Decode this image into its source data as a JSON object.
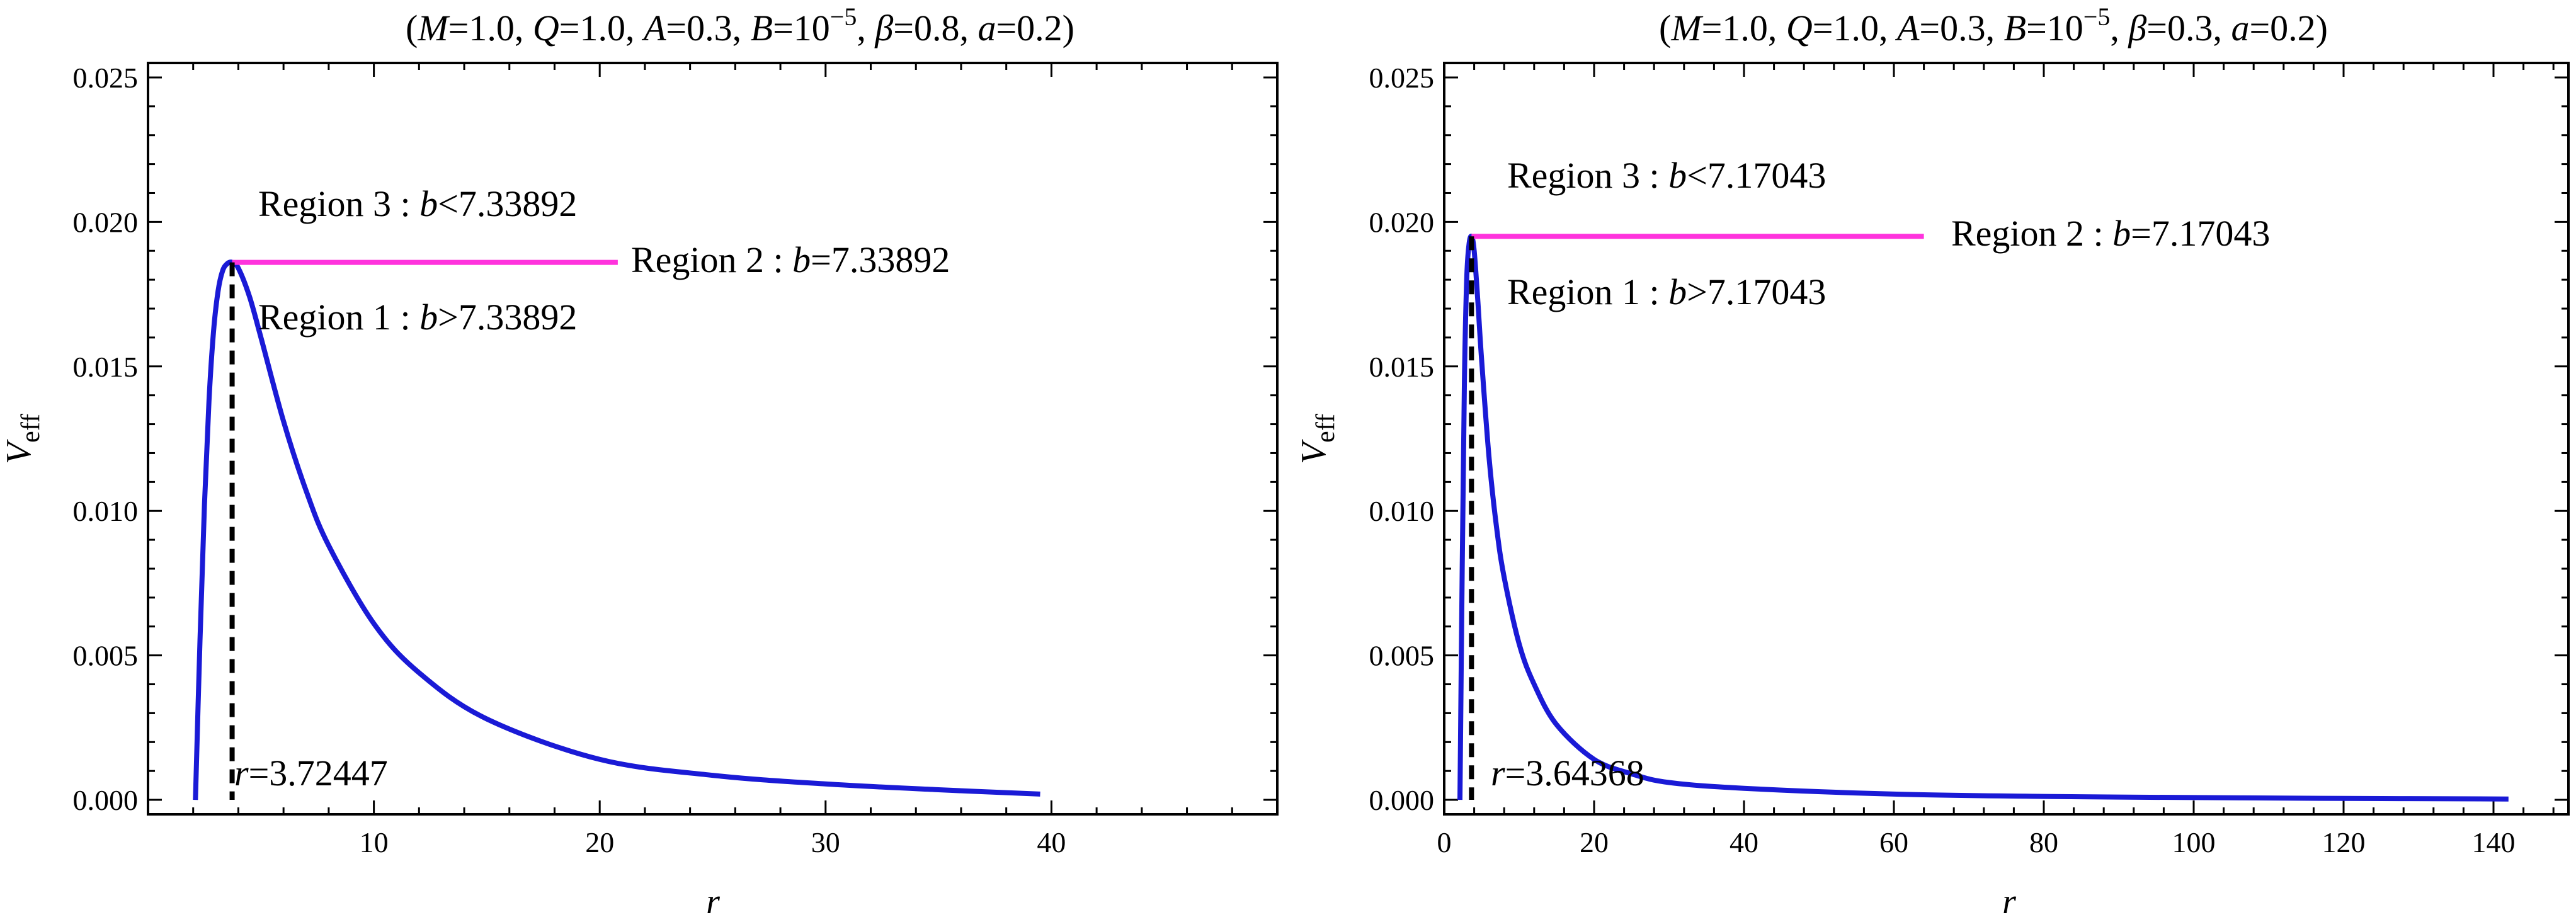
{
  "chart_data": [
    {
      "type": "line",
      "title": "(M=1.0, Q=1.0, A=0.3, B=10^-5, β=0.8, a=0.2)",
      "title_parts": {
        "open": "(",
        "M_var": "M",
        "M_val": "=1.0, ",
        "Q_var": "Q",
        "Q_val": "=1.0, ",
        "A_var": "A",
        "A_val": "=0.3, ",
        "B_var": "B",
        "B_val": "=10",
        "B_exp": "−5",
        "sep": ", ",
        "beta_var": "β",
        "beta_val": "=0.8, ",
        "a_var": "a",
        "a_val": "=0.2",
        "close": ")"
      },
      "xlabel": "r",
      "ylabel_main": "V",
      "ylabel_sub": "eff",
      "xlim": [
        0,
        50
      ],
      "ylim": [
        -0.0005,
        0.0255
      ],
      "xticks": [
        10,
        20,
        30,
        40
      ],
      "xtick_labels": [
        "10",
        "20",
        "30",
        "40"
      ],
      "yticks": [
        0,
        0.005,
        0.01,
        0.015,
        0.02,
        0.025
      ],
      "ytick_labels": [
        "0.000",
        "0.005",
        "0.010",
        "0.015",
        "0.020",
        "0.025"
      ],
      "curve_color": "#1a1ad6",
      "level_color": "#ff33dd",
      "series": {
        "x": [
          2.1,
          2.3,
          2.5,
          2.7,
          2.9,
          3.1,
          3.3,
          3.5,
          3.72447,
          4.0,
          4.5,
          5.0,
          6.0,
          7.0,
          8.0,
          10.0,
          12.0,
          15.0,
          20.0,
          25.0,
          30.0,
          35.0,
          39.5
        ],
        "y": [
          0.0,
          0.0055,
          0.0102,
          0.0138,
          0.0162,
          0.0176,
          0.0183,
          0.01855,
          0.0186,
          0.0184,
          0.0174,
          0.016,
          0.0131,
          0.0107,
          0.0088,
          0.0061,
          0.0044,
          0.0028,
          0.0014,
          0.00085,
          0.00055,
          0.00035,
          0.0002
        ]
      },
      "peak": {
        "r": 3.72447,
        "V": 0.0186
      },
      "level_line": {
        "y": 0.0186,
        "x_start": 3.72447,
        "x_end": 20.8
      },
      "annotations": {
        "region3_pre": "Region 3 : ",
        "region3_var": "b",
        "region3_rel": "<7.33892",
        "region2_pre": "Region 2 : ",
        "region2_var": "b",
        "region2_rel": "=7.33892",
        "region1_pre": "Region 1 : ",
        "region1_var": "b",
        "region1_rel": ">7.33892",
        "r_var": "r",
        "r_val": "=3.72447"
      }
    },
    {
      "type": "line",
      "title": "(M=1.0, Q=1.0, A=0.3, B=10^-5, β=0.3, a=0.2)",
      "title_parts": {
        "open": "(",
        "M_var": "M",
        "M_val": "=1.0, ",
        "Q_var": "Q",
        "Q_val": "=1.0, ",
        "A_var": "A",
        "A_val": "=0.3, ",
        "B_var": "B",
        "B_val": "=10",
        "B_exp": "−5",
        "sep": ", ",
        "beta_var": "β",
        "beta_val": "=0.3, ",
        "a_var": "a",
        "a_val": "=0.2",
        "close": ")"
      },
      "xlabel": "r",
      "ylabel_main": "V",
      "ylabel_sub": "eff",
      "xlim": [
        0,
        150
      ],
      "ylim": [
        -0.0005,
        0.0255
      ],
      "xticks": [
        0,
        20,
        40,
        60,
        80,
        100,
        120,
        140
      ],
      "xtick_labels": [
        "0",
        "20",
        "40",
        "60",
        "80",
        "100",
        "120",
        "140"
      ],
      "yticks": [
        0,
        0.005,
        0.01,
        0.015,
        0.02,
        0.025
      ],
      "ytick_labels": [
        "0.000",
        "0.005",
        "0.010",
        "0.015",
        "0.020",
        "0.025"
      ],
      "curve_color": "#1a1ad6",
      "level_color": "#ff33dd",
      "series": {
        "x": [
          2.1,
          2.4,
          2.7,
          3.0,
          3.3,
          3.64368,
          4.0,
          4.5,
          5.0,
          6.0,
          7.0,
          8.0,
          10.0,
          12.0,
          15.0,
          20.0,
          25.0,
          30.0,
          40.0,
          60.0,
          80.0,
          100.0,
          120.0,
          142.0
        ],
        "y": [
          0.0,
          0.008,
          0.0145,
          0.018,
          0.0192,
          0.0195,
          0.019,
          0.0172,
          0.0152,
          0.0118,
          0.0094,
          0.0077,
          0.0054,
          0.004,
          0.0026,
          0.0014,
          0.0009,
          0.0006,
          0.0004,
          0.0002,
          0.00012,
          8e-05,
          5e-05,
          3e-05
        ]
      },
      "peak": {
        "r": 3.64368,
        "V": 0.0195
      },
      "level_line": {
        "y": 0.0195,
        "x_start": 3.64368,
        "x_end": 64.0
      },
      "annotations": {
        "region3_pre": "Region 3 : ",
        "region3_var": "b",
        "region3_rel": "<7.17043",
        "region2_pre": "Region 2 : ",
        "region2_var": "b",
        "region2_rel": "=7.17043",
        "region1_pre": "Region 1 : ",
        "region1_var": "b",
        "region1_rel": ">7.17043",
        "r_var": "r",
        "r_val": "=3.64368"
      }
    }
  ]
}
